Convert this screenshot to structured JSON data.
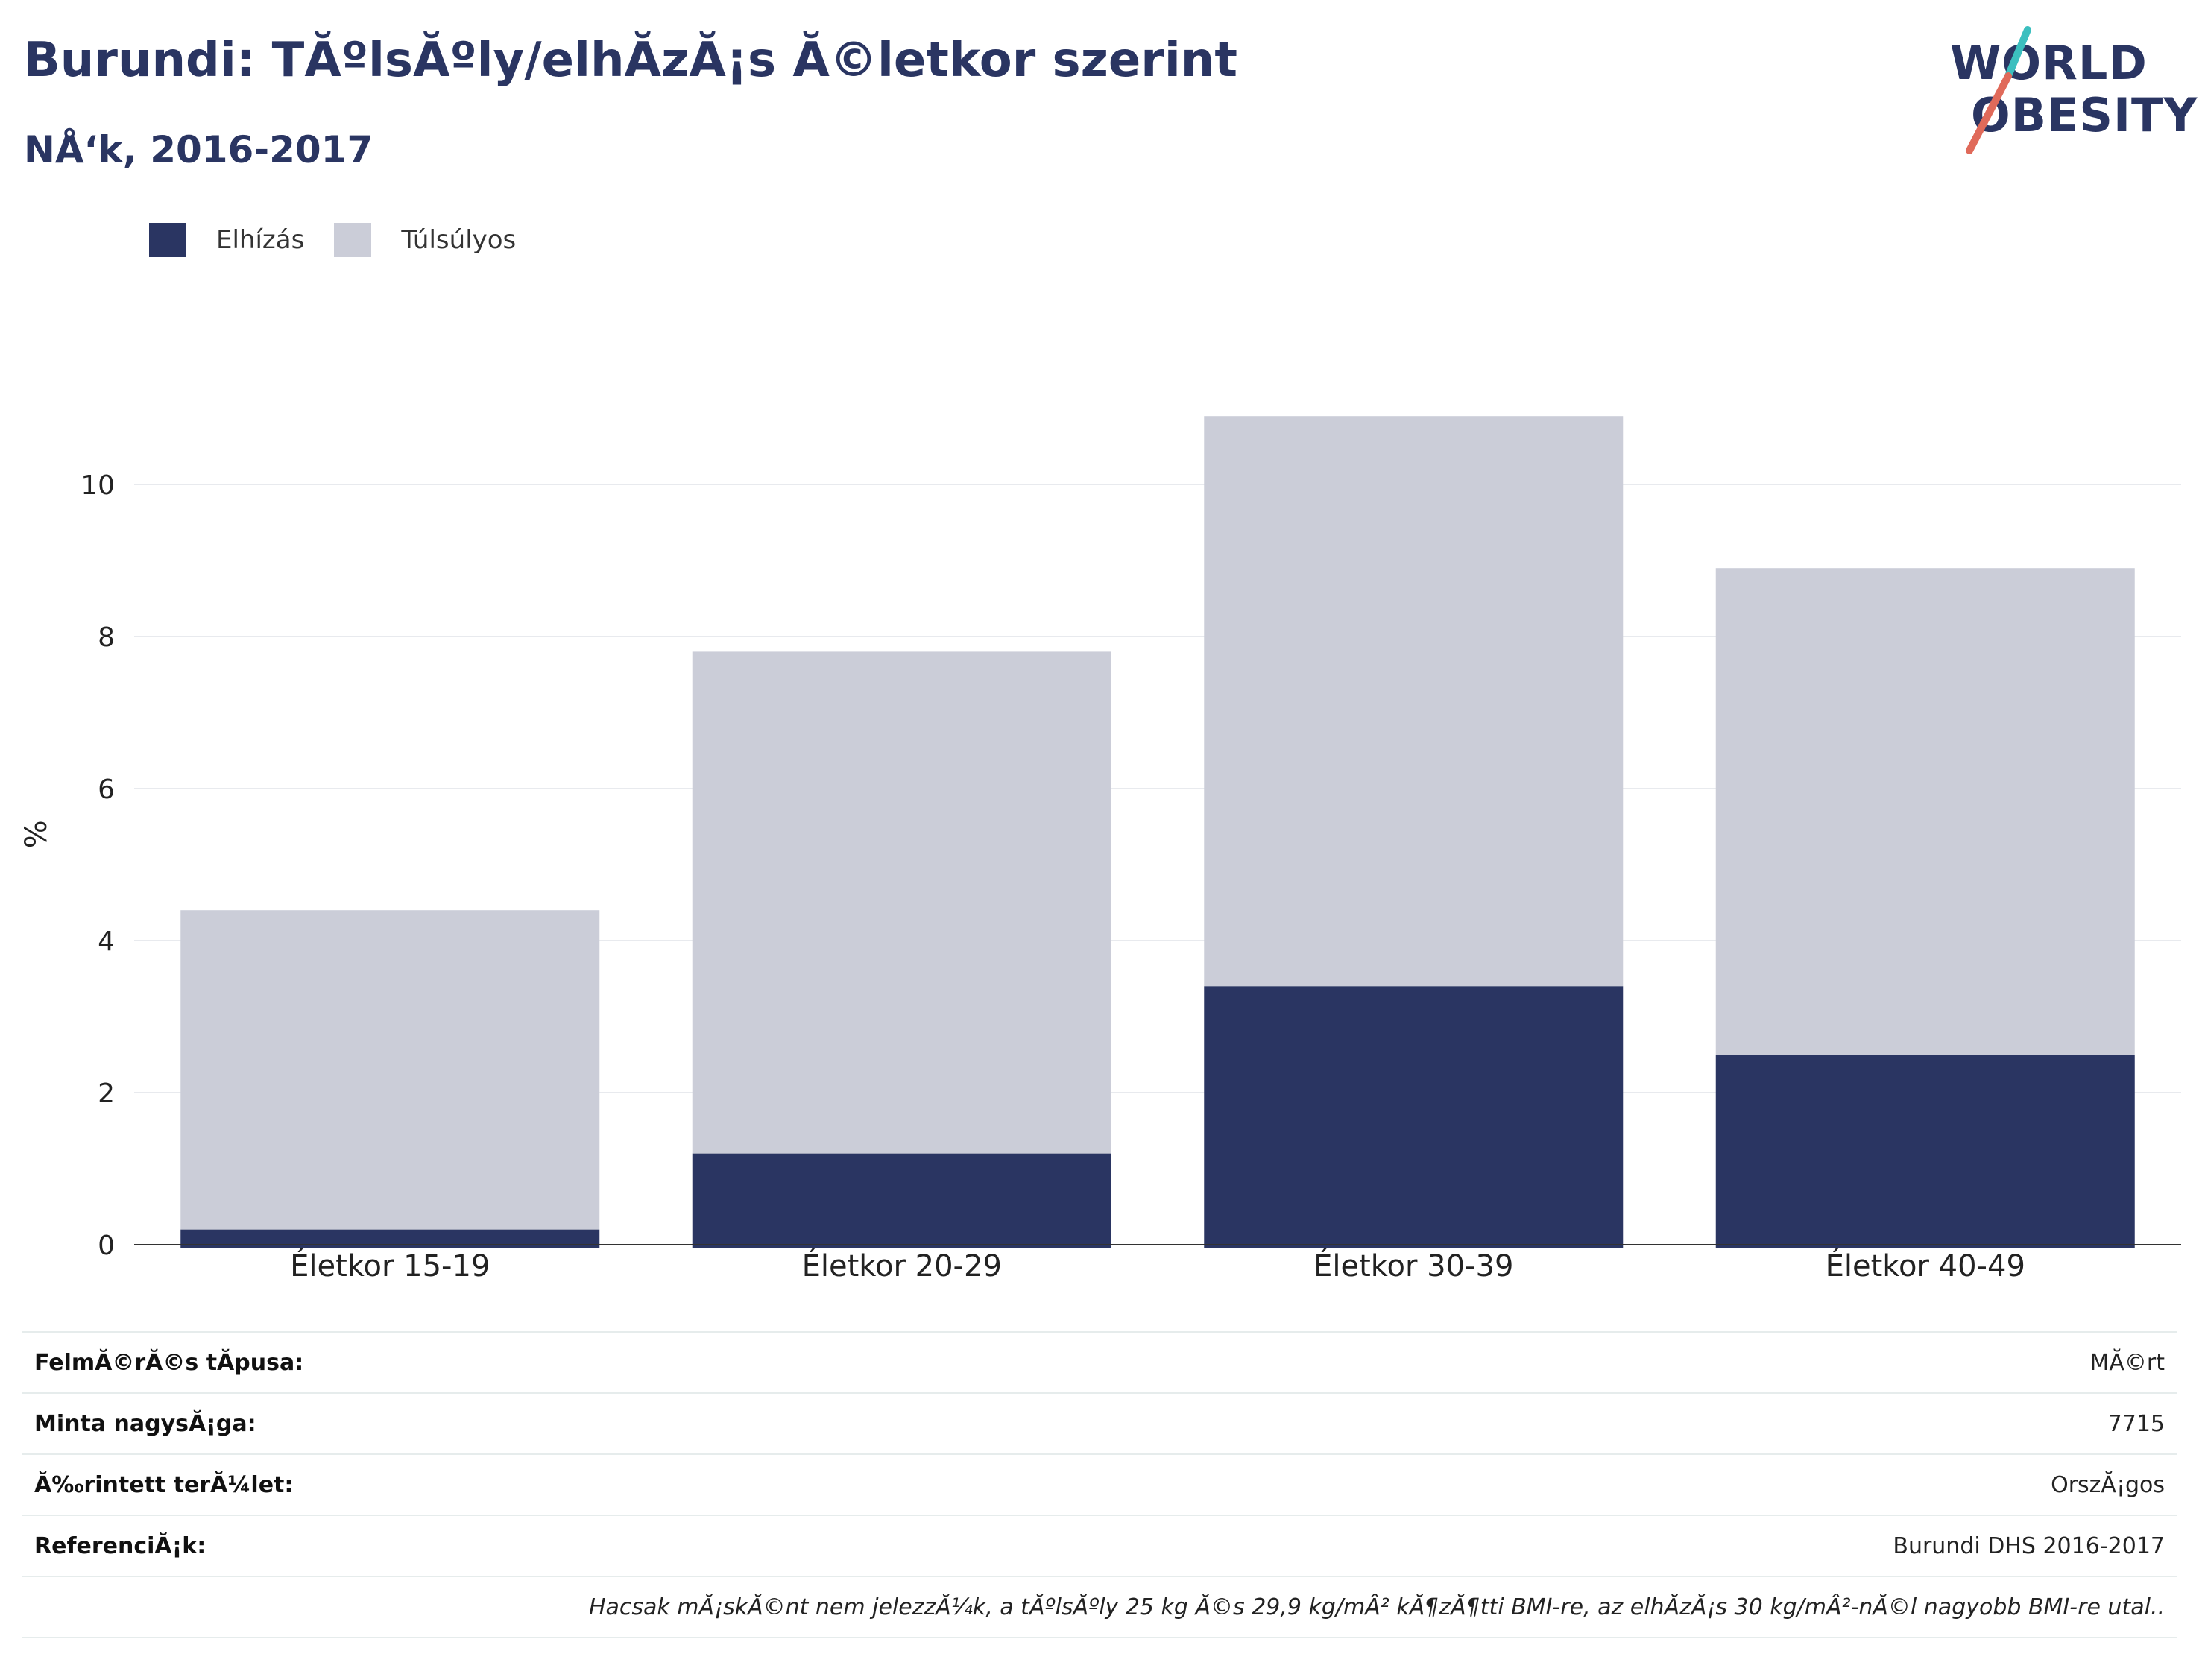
{
  "header": {
    "title": "Burundi: TĂºlsĂºly/elhĂzĂ¡s Ă©letkor szerint",
    "subtitle": "NÅ‘k, 2016-2017"
  },
  "logo": {
    "line1": "WORLD",
    "line2": "OBESITY"
  },
  "legend": [
    {
      "label": "Elhízás",
      "color": "#2a3562"
    },
    {
      "label": "Túlsúlyos",
      "color": "#cbcdd8"
    }
  ],
  "chart_data": {
    "type": "bar",
    "stacked": true,
    "categories": [
      "Életkor 15-19",
      "Életkor 20-29",
      "Életkor 30-39",
      "Életkor 40-49"
    ],
    "series": [
      {
        "name": "Elhízás",
        "color": "#2a3562",
        "values": [
          0.2,
          1.2,
          3.4,
          2.5
        ]
      },
      {
        "name": "Túlsúlyos",
        "color": "#cbcdd8",
        "values": [
          4.2,
          6.6,
          7.5,
          6.4
        ]
      }
    ],
    "ylabel": "%",
    "ylim": [
      0,
      11.2
    ],
    "yticks": [
      0,
      2,
      4,
      6,
      8,
      10
    ],
    "grid": true
  },
  "info": {
    "rows": [
      {
        "key": "FelmĂ©rĂ©s tĂpusa:",
        "value": "MĂ©rt"
      },
      {
        "key": "Minta nagysĂ¡ga:",
        "value": "7715"
      },
      {
        "key": "Ă‰rintett terĂ¼let:",
        "value": "OrszĂ¡gos"
      },
      {
        "key": "ReferenciĂ¡k:",
        "value": "Burundi DHS 2016-2017"
      }
    ],
    "note": "Hacsak mĂ¡skĂ©nt nem jelezzĂ¼k, a tĂºlsĂºly 25 kg Ă©s 29,9 kg/mÂ² kĂ¶zĂ¶tti BMI-re, az elhĂzĂ¡s 30 kg/mÂ²-nĂ©l nagyobb BMI-re utal.."
  }
}
